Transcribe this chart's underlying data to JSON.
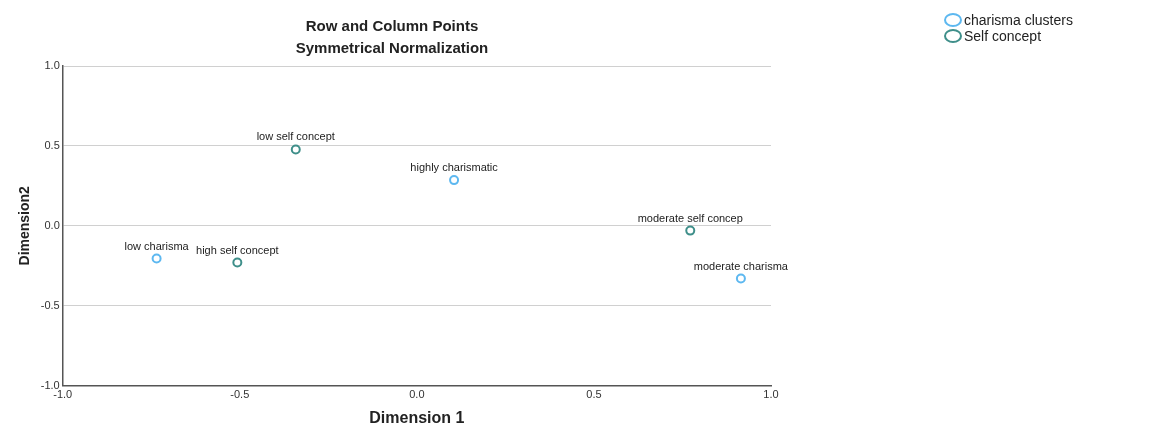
{
  "chart_data": {
    "type": "scatter",
    "title": "Row and Column Points",
    "subtitle": "Symmetrical Normalization",
    "xlabel": "Dimension 1",
    "ylabel": "Dimension2",
    "xlim": [
      -1,
      1
    ],
    "xticks": [
      {
        "value": -1,
        "label": "-1.0"
      },
      {
        "value": -0.5,
        "label": "-0.5"
      },
      {
        "value": 0,
        "label": "0.0"
      },
      {
        "value": 0.5,
        "label": "0.5"
      },
      {
        "value": 1,
        "label": "1.0"
      }
    ],
    "ylim": [
      -1,
      1
    ],
    "yticks": [
      {
        "value": -1,
        "label": "-1.0"
      },
      {
        "value": -0.5,
        "label": "-0.5"
      },
      {
        "value": 0,
        "label": "0.0"
      },
      {
        "value": 0.5,
        "label": "0.5"
      },
      {
        "value": 1,
        "label": "1.0"
      }
    ],
    "grid": "y",
    "legend": "top right",
    "marker": "circle",
    "series": [
      {
        "name": "charisma clusters",
        "color": "#5db8f0",
        "x": [
          -0.735,
          0.105,
          0.915
        ],
        "values": [
          -0.205,
          0.286,
          -0.33
        ]
      },
      {
        "name": "Self concept",
        "color": "#3f8f8a",
        "x": [
          -0.342,
          -0.507,
          0.772
        ],
        "values": [
          0.478,
          -0.23,
          -0.03
        ]
      }
    ],
    "annotations": [
      {
        "text": "low charisma",
        "x": -0.735,
        "y": -0.205
      },
      {
        "text": "highly charismatic",
        "x": 0.105,
        "y": 0.286
      },
      {
        "text": "moderate charisma",
        "x": 0.915,
        "y": -0.33
      },
      {
        "text": "low self concept",
        "x": -0.342,
        "y": 0.478
      },
      {
        "text": "high self concept",
        "x": -0.507,
        "y": -0.23
      },
      {
        "text": "moderate self concep",
        "x": 0.772,
        "y": -0.03
      }
    ]
  }
}
